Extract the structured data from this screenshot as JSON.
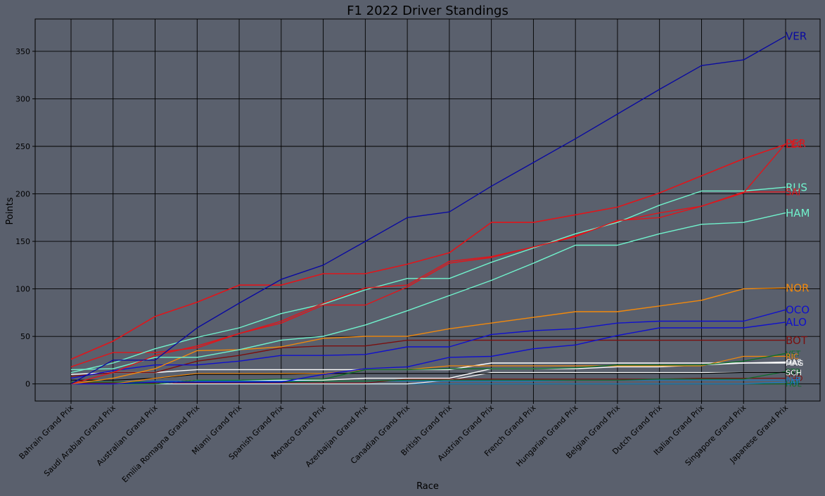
{
  "colors": {
    "background": "#5a606d",
    "plot_background": "#5a606d",
    "grid": "#000000",
    "text": "#000000"
  },
  "chart_data": {
    "type": "line",
    "title": "F1 2022 Driver Standings",
    "xlabel": "Race",
    "ylabel": "Points",
    "ylim": [
      -18,
      384
    ],
    "yticks": [
      0,
      50,
      100,
      150,
      200,
      250,
      300,
      350
    ],
    "grid": true,
    "legend": "none (labels at line ends)",
    "categories": [
      "Bahrain Grand Prix",
      "Saudi Arabian Grand Prix",
      "Australian Grand Prix",
      "Emilia Romagna Grand Prix",
      "Miami Grand Prix",
      "Spanish Grand Prix",
      "Monaco Grand Prix",
      "Azerbaijan Grand Prix",
      "Canadian Grand Prix",
      "British Grand Prix",
      "Austrian Grand Prix",
      "French Grand Prix",
      "Hungarian Grand Prix",
      "Belgian Grand Prix",
      "Dutch Grand Prix",
      "Italian Grand Prix",
      "Singapore Grand Prix",
      "Japanese Grand Prix"
    ],
    "series": [
      {
        "name": "VER",
        "color": "#0a0aa0",
        "width": 1.4,
        "labelSize": 15,
        "values": [
          0,
          25,
          25,
          59,
          85,
          110,
          125,
          150,
          175,
          181,
          208,
          233,
          258,
          284,
          310,
          335,
          341,
          366
        ]
      },
      {
        "name": "PER",
        "color": "#e0151b",
        "width": 1.4,
        "labelSize": 15,
        "values": [
          0,
          12,
          30,
          40,
          53,
          66,
          85,
          101,
          104,
          129,
          134,
          144,
          155,
          172,
          175,
          187,
          201,
          253
        ]
      },
      {
        "name": "LEC",
        "color": "#e0151b",
        "width": 1.6,
        "labelSize": 13,
        "values": [
          26,
          45,
          71,
          86,
          104,
          104,
          116,
          116,
          126,
          138,
          170,
          170,
          178,
          186,
          201,
          219,
          237,
          252
        ]
      },
      {
        "name": "RUS",
        "color": "#70f2cc",
        "width": 1.4,
        "labelSize": 15,
        "values": [
          12,
          22,
          37,
          49,
          59,
          74,
          84,
          99,
          111,
          111,
          128,
          143,
          158,
          170,
          188,
          203,
          203,
          207
        ]
      },
      {
        "name": "SAI",
        "color": "#e0151b",
        "width": 1.4,
        "labelSize": 13,
        "values": [
          18,
          33,
          33,
          38,
          53,
          64,
          83,
          83,
          102,
          127,
          133,
          144,
          156,
          171,
          180,
          187,
          202,
          202
        ]
      },
      {
        "name": "HAM",
        "color": "#70f2cc",
        "width": 1.4,
        "labelSize": 15,
        "values": [
          15,
          16,
          28,
          28,
          36,
          46,
          50,
          62,
          77,
          93,
          109,
          127,
          146,
          146,
          158,
          168,
          170,
          180
        ]
      },
      {
        "name": "NOR",
        "color": "#f2890c",
        "width": 1.4,
        "labelSize": 15,
        "values": [
          0,
          6,
          16,
          35,
          36,
          39,
          48,
          50,
          50,
          58,
          64,
          70,
          76,
          76,
          82,
          88,
          100,
          101
        ]
      },
      {
        "name": "OCO",
        "color": "#1010cc",
        "width": 1.4,
        "labelSize": 15,
        "values": [
          6,
          14,
          20,
          20,
          24,
          30,
          30,
          31,
          39,
          39,
          52,
          56,
          58,
          64,
          66,
          66,
          66,
          78
        ]
      },
      {
        "name": "ALO",
        "color": "#1010cc",
        "width": 1.4,
        "labelSize": 15,
        "values": [
          0,
          0,
          2,
          2,
          2,
          2,
          10,
          16,
          18,
          28,
          29,
          37,
          41,
          51,
          59,
          59,
          59,
          65
        ]
      },
      {
        "name": "BOT",
        "color": "#7a0f0f",
        "width": 1.4,
        "labelSize": 15,
        "values": [
          8,
          12,
          12,
          24,
          30,
          38,
          40,
          40,
          46,
          46,
          46,
          46,
          46,
          46,
          46,
          46,
          46,
          46
        ]
      },
      {
        "name": "VET",
        "color": "#0e6e2a",
        "width": 1.4,
        "labelSize": 11,
        "values": [
          0,
          0,
          0,
          4,
          4,
          5,
          5,
          15,
          15,
          16,
          16,
          16,
          17,
          20,
          20,
          20,
          24,
          32
        ]
      },
      {
        "name": "RIC",
        "color": "#f2890c",
        "width": 1.2,
        "labelSize": 11,
        "values": [
          0,
          0,
          6,
          11,
          11,
          11,
          11,
          15,
          15,
          19,
          19,
          19,
          19,
          19,
          19,
          19,
          29,
          29
        ]
      },
      {
        "name": "GAS",
        "color": "#ffffff",
        "width": 1.4,
        "labelSize": 11,
        "values": [
          0,
          0,
          0,
          4,
          4,
          4,
          4,
          6,
          6,
          6,
          16,
          16,
          16,
          18,
          18,
          20,
          22,
          23
        ]
      },
      {
        "name": "MAG",
        "color": "#ffffff",
        "width": 1.4,
        "labelSize": 11,
        "values": [
          10,
          12,
          12,
          15,
          15,
          15,
          15,
          15,
          15,
          15,
          22,
          22,
          22,
          22,
          22,
          22,
          22,
          22
        ]
      },
      {
        "name": "TSU",
        "color": "#000000",
        "width": 1.2,
        "labelSize": 11,
        "values": [
          4,
          4,
          6,
          10,
          10,
          10,
          11,
          11,
          11,
          11,
          11,
          11,
          11,
          11,
          11,
          11,
          12,
          12
        ]
      },
      {
        "name": "STR",
        "color": "#0e6e2a",
        "width": 1.2,
        "labelSize": 11,
        "values": [
          2,
          2,
          2,
          2,
          2,
          2,
          3,
          3,
          4,
          4,
          4,
          4,
          4,
          4,
          5,
          5,
          5,
          13
        ]
      },
      {
        "name": "ZHO",
        "color": "#7a0f0f",
        "width": 1.2,
        "labelSize": 11,
        "values": [
          1,
          1,
          1,
          1,
          1,
          1,
          1,
          1,
          5,
          5,
          5,
          5,
          5,
          5,
          5,
          6,
          6,
          6
        ]
      },
      {
        "name": "ALB",
        "color": "#1a7ac2",
        "width": 1.2,
        "labelSize": 11,
        "values": [
          0,
          0,
          3,
          3,
          3,
          3,
          3,
          3,
          3,
          3,
          3,
          3,
          4,
          4,
          4,
          4,
          4,
          4
        ]
      },
      {
        "name": "SCH",
        "color": "#ffffff",
        "width": 1.2,
        "labelSize": 11,
        "values": [
          0,
          0,
          0,
          0,
          0,
          0,
          0,
          0,
          0,
          4,
          12,
          12,
          12,
          12,
          12,
          12,
          12,
          12
        ]
      },
      {
        "name": "LAT",
        "color": "#1a7ac2",
        "width": 1.2,
        "labelSize": 11,
        "values": [
          0,
          0,
          0,
          0,
          0,
          0,
          0,
          0,
          0,
          0,
          0,
          0,
          0,
          0,
          0,
          0,
          0,
          2
        ]
      },
      {
        "name": "HUL",
        "color": "#0e6e2a",
        "width": 1.2,
        "labelSize": 11,
        "values": [
          0,
          0,
          0,
          0,
          0,
          0,
          0,
          0,
          0,
          0,
          0,
          0,
          0,
          0,
          0,
          0,
          0,
          0
        ]
      }
    ]
  }
}
